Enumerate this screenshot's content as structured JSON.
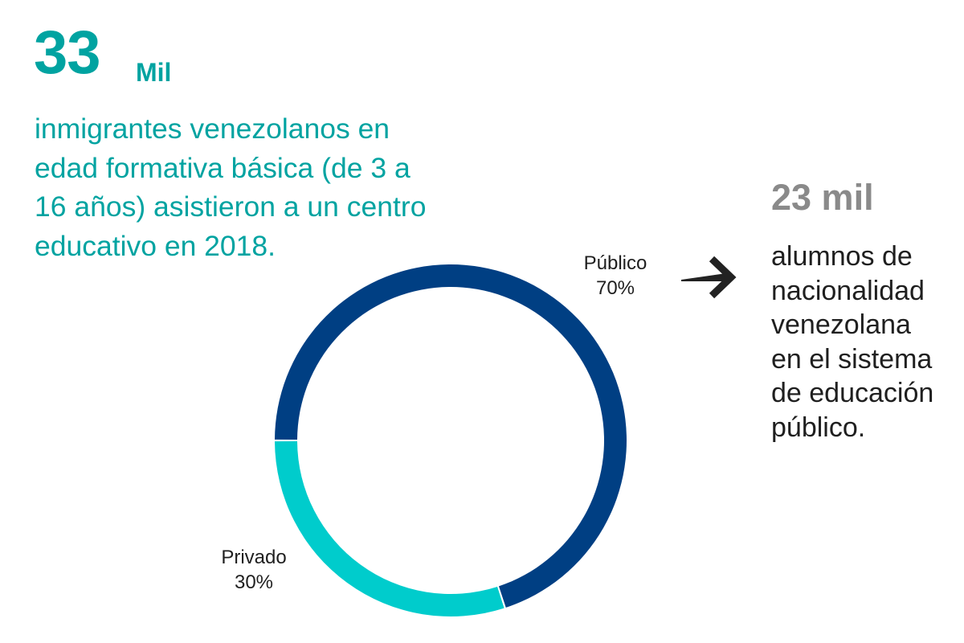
{
  "headline": {
    "number": "33",
    "unit": "Mil",
    "description_lines": [
      "inmigrantes venezolanos en",
      "edad formativa básica (de 3 a",
      "16 años) asistieron a un centro",
      "educativo en 2018."
    ]
  },
  "callout": {
    "number": "23 mil",
    "description_lines": [
      "alumnos de",
      "nacionalidad",
      "venezolana",
      "en el sistema",
      "de educación",
      "público."
    ],
    "arrow_icon": "right-arrow-icon"
  },
  "colors": {
    "accent_teal": "#00a3a1",
    "publico": "#003f83",
    "privado": "#00cccc",
    "callout_gray": "#8a8a8a",
    "text_dark": "#1f1f1f"
  },
  "chart_data": {
    "type": "pie",
    "variant": "donut",
    "title": "",
    "slices": [
      {
        "label": "Público",
        "value": 70,
        "display": "70%",
        "color": "#003f83"
      },
      {
        "label": "Privado",
        "value": 30,
        "display": "30%",
        "color": "#00cccc"
      }
    ],
    "start_angle": "9 o'clock",
    "direction": "privado counterclockwise from 9 o'clock, público clockwise",
    "legend": "none (direct labels)"
  }
}
